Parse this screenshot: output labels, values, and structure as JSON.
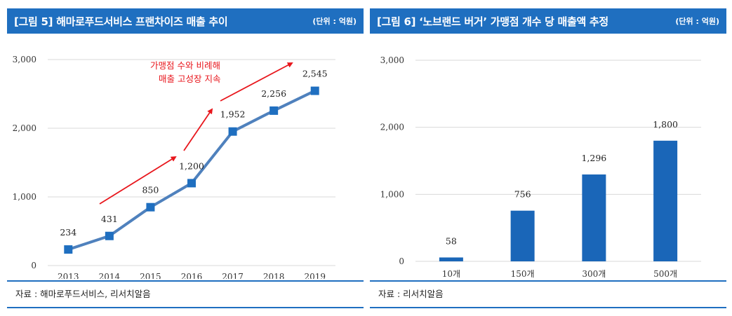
{
  "charts": [
    {
      "title": "[그림 5] 해마로푸드서비스 프랜차이즈 매출 추이",
      "unit": "(단위 : 억원)",
      "source": "자료 : 해마로푸드서비스, 리서치알음",
      "annotation": [
        "가맹점 수와 비례해",
        "매출 고성장 지속"
      ]
    },
    {
      "title": "[그림 6] ‘노브랜드 버거’ 가맹점 개수 당 매출액 추정",
      "unit": "(단위 : 억원)",
      "source": "자료 : 리서치알음"
    }
  ],
  "chart_data": [
    {
      "type": "line",
      "title": "[그림 5] 해마로푸드서비스 프랜차이즈 매출 추이",
      "categories": [
        "2013",
        "2014",
        "2015",
        "2016",
        "2017",
        "2018",
        "2019"
      ],
      "values": [
        234,
        431,
        850,
        1200,
        1952,
        2256,
        2545
      ],
      "value_labels": [
        "234",
        "431",
        "850",
        "1,200",
        "1,952",
        "2,256",
        "2,545"
      ],
      "ylim": [
        0,
        3000
      ],
      "yticks": [
        0,
        1000,
        2000,
        3000
      ],
      "ytick_labels": [
        "0",
        "1,000",
        "2,000",
        "3,000"
      ],
      "xlabel": "",
      "ylabel": "",
      "grid": true,
      "color": "#4f81bd",
      "marker_color": "#1f6fc0"
    },
    {
      "type": "bar",
      "title": "[그림 6] ‘노브랜드 버거’ 가맹점 개수 당 매출액 추정",
      "categories": [
        "10개",
        "150개",
        "300개",
        "500개"
      ],
      "values": [
        58,
        756,
        1296,
        1800
      ],
      "value_labels": [
        "58",
        "756",
        "1,296",
        "1,800"
      ],
      "ylim": [
        0,
        3000
      ],
      "yticks": [
        0,
        1000,
        2000,
        3000
      ],
      "ytick_labels": [
        "0",
        "1,000",
        "2,000",
        "3,000"
      ],
      "xlabel": "",
      "ylabel": "",
      "grid": true,
      "color": "#1a66b8"
    }
  ]
}
